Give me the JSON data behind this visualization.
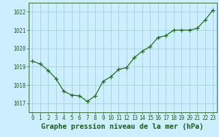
{
  "x": [
    0,
    1,
    2,
    3,
    4,
    5,
    6,
    7,
    8,
    9,
    10,
    11,
    12,
    13,
    14,
    15,
    16,
    17,
    18,
    19,
    20,
    21,
    22,
    23
  ],
  "y": [
    1019.3,
    1019.15,
    1018.8,
    1018.35,
    1017.65,
    1017.45,
    1017.4,
    1017.1,
    1017.4,
    1018.2,
    1018.45,
    1018.85,
    1018.95,
    1019.5,
    1019.85,
    1020.1,
    1020.6,
    1020.7,
    1021.0,
    1021.0,
    1021.0,
    1021.1,
    1021.55,
    1022.1
  ],
  "line_color": "#1a6b1a",
  "marker": "+",
  "marker_size": 4,
  "marker_color": "#1a6b1a",
  "bg_color": "#cceeff",
  "grid_color": "#99cccc",
  "axis_color": "#336633",
  "xlabel": "Graphe pression niveau de la mer (hPa)",
  "xlabel_fontsize": 7.5,
  "xlabel_color": "#1a5c1a",
  "ylim": [
    1016.5,
    1022.5
  ],
  "yticks": [
    1017,
    1018,
    1019,
    1020,
    1021,
    1022
  ],
  "xlim": [
    -0.5,
    23.5
  ],
  "xticks": [
    0,
    1,
    2,
    3,
    4,
    5,
    6,
    7,
    8,
    9,
    10,
    11,
    12,
    13,
    14,
    15,
    16,
    17,
    18,
    19,
    20,
    21,
    22,
    23
  ],
  "tick_fontsize": 5.5,
  "tick_color": "#1a5c1a",
  "linewidth": 0.9
}
